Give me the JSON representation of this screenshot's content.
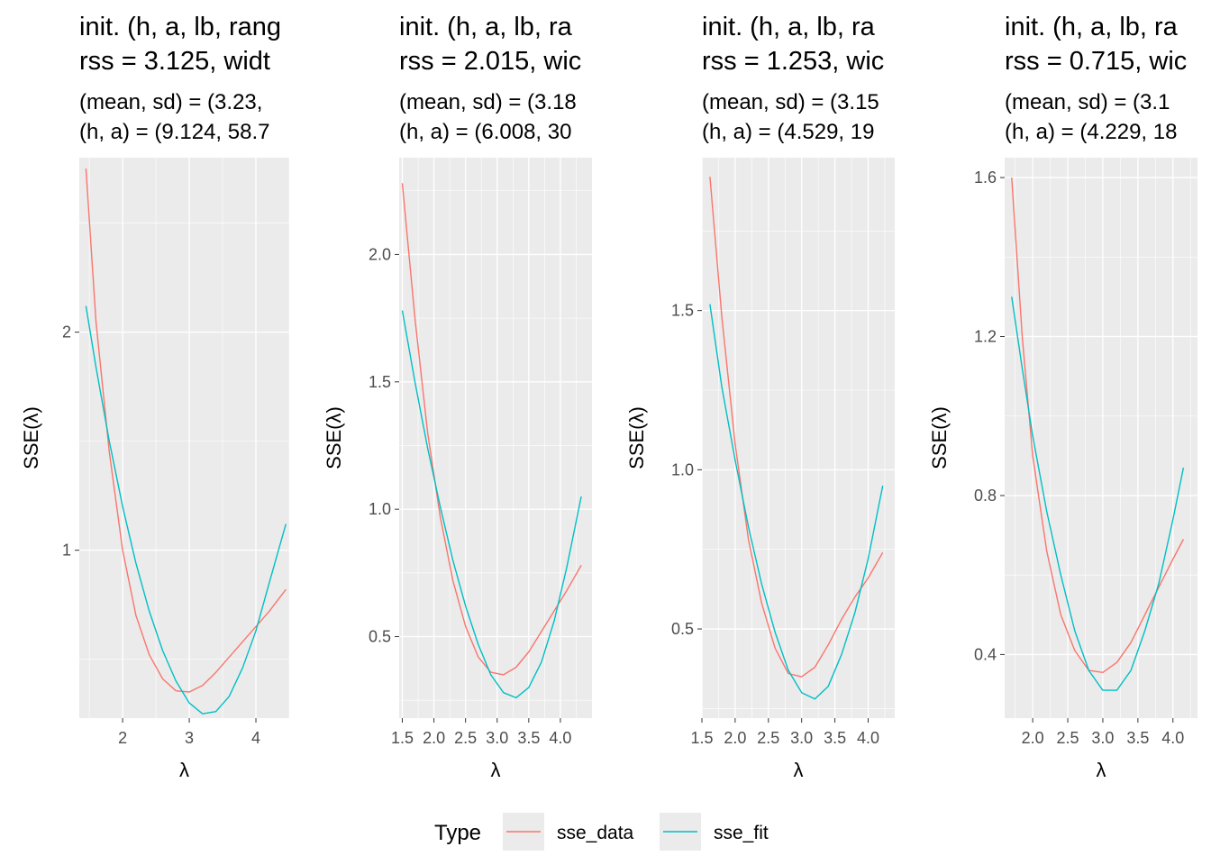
{
  "chart_data": [
    {
      "type": "line",
      "title_lines": [
        "init. (h, a, lb, rang",
        "rss = 3.125, widt"
      ],
      "subtitle_lines": [
        "(mean, sd) = (3.23, ",
        "(h, a) = (9.124, 58.7"
      ],
      "xlabel": "λ",
      "ylabel": "SSE(λ)",
      "xlim": [
        1.35,
        4.5
      ],
      "ylim": [
        0.23,
        2.8
      ],
      "xticks": [
        2,
        3,
        4
      ],
      "xtick_labels": [
        "2",
        "3",
        "4"
      ],
      "yticks": [
        1,
        2
      ],
      "ytick_labels": [
        "1",
        "2"
      ],
      "series": [
        {
          "name": "sse_data",
          "x": [
            1.45,
            1.6,
            1.8,
            2.0,
            2.2,
            2.4,
            2.6,
            2.8,
            3.0,
            3.2,
            3.4,
            3.6,
            3.8,
            4.0,
            4.2,
            4.45
          ],
          "y": [
            2.75,
            2.05,
            1.45,
            1.0,
            0.7,
            0.52,
            0.41,
            0.355,
            0.35,
            0.38,
            0.44,
            0.51,
            0.58,
            0.65,
            0.72,
            0.82
          ]
        },
        {
          "name": "sse_fit",
          "x": [
            1.45,
            1.6,
            1.8,
            2.0,
            2.2,
            2.4,
            2.6,
            2.8,
            3.0,
            3.2,
            3.4,
            3.6,
            3.8,
            4.0,
            4.2,
            4.45
          ],
          "y": [
            2.12,
            1.84,
            1.5,
            1.2,
            0.94,
            0.72,
            0.54,
            0.4,
            0.3,
            0.25,
            0.26,
            0.33,
            0.46,
            0.63,
            0.85,
            1.12
          ]
        }
      ]
    },
    {
      "type": "line",
      "title_lines": [
        "init. (h, a, lb, ra",
        "rss = 2.015, wic"
      ],
      "subtitle_lines": [
        "(mean, sd) = (3.18",
        "(h, a) = (6.008, 30"
      ],
      "xlabel": "λ",
      "ylabel": "SSE(λ)",
      "xlim": [
        1.45,
        4.5
      ],
      "ylim": [
        0.18,
        2.38
      ],
      "xticks": [
        1.5,
        2.0,
        2.5,
        3.0,
        3.5,
        4.0
      ],
      "xtick_labels": [
        "1.5",
        "2.0",
        "2.5",
        "3.0",
        "3.5",
        "4.0"
      ],
      "yticks": [
        0.5,
        1.0,
        1.5,
        2.0
      ],
      "ytick_labels": [
        "0.5",
        "1.0",
        "1.5",
        "2.0"
      ],
      "series": [
        {
          "name": "sse_data",
          "x": [
            1.5,
            1.7,
            1.9,
            2.1,
            2.3,
            2.5,
            2.7,
            2.9,
            3.1,
            3.3,
            3.5,
            3.7,
            3.9,
            4.1,
            4.33
          ],
          "y": [
            2.28,
            1.75,
            1.3,
            0.97,
            0.72,
            0.54,
            0.42,
            0.36,
            0.35,
            0.38,
            0.44,
            0.52,
            0.6,
            0.68,
            0.78
          ]
        },
        {
          "name": "sse_fit",
          "x": [
            1.5,
            1.7,
            1.9,
            2.1,
            2.3,
            2.5,
            2.7,
            2.9,
            3.1,
            3.3,
            3.5,
            3.7,
            3.9,
            4.1,
            4.33
          ],
          "y": [
            1.78,
            1.5,
            1.24,
            1.01,
            0.8,
            0.62,
            0.47,
            0.35,
            0.28,
            0.26,
            0.3,
            0.4,
            0.56,
            0.77,
            1.05
          ]
        }
      ]
    },
    {
      "type": "line",
      "title_lines": [
        "init. (h, a, lb, ra",
        "rss = 1.253, wic"
      ],
      "subtitle_lines": [
        "(mean, sd) = (3.15",
        "(h, a) = (4.529, 19"
      ],
      "xlabel": "λ",
      "ylabel": "SSE(λ)",
      "xlim": [
        1.5,
        4.4
      ],
      "ylim": [
        0.22,
        1.98
      ],
      "xticks": [
        1.5,
        2.0,
        2.5,
        3.0,
        3.5,
        4.0
      ],
      "xtick_labels": [
        "1.5",
        "2.0",
        "2.5",
        "3.0",
        "3.5",
        "4.0"
      ],
      "yticks": [
        0.5,
        1.0,
        1.5
      ],
      "ytick_labels": [
        "0.5",
        "1.0",
        "1.5"
      ],
      "series": [
        {
          "name": "sse_data",
          "x": [
            1.62,
            1.8,
            2.0,
            2.2,
            2.4,
            2.6,
            2.8,
            3.0,
            3.2,
            3.4,
            3.6,
            3.8,
            4.0,
            4.22
          ],
          "y": [
            1.92,
            1.48,
            1.08,
            0.78,
            0.58,
            0.44,
            0.36,
            0.35,
            0.38,
            0.45,
            0.53,
            0.6,
            0.66,
            0.74
          ]
        },
        {
          "name": "sse_fit",
          "x": [
            1.62,
            1.8,
            2.0,
            2.2,
            2.4,
            2.6,
            2.8,
            3.0,
            3.2,
            3.4,
            3.6,
            3.8,
            4.0,
            4.22
          ],
          "y": [
            1.52,
            1.26,
            1.03,
            0.82,
            0.64,
            0.49,
            0.37,
            0.3,
            0.28,
            0.32,
            0.42,
            0.55,
            0.72,
            0.95
          ]
        }
      ]
    },
    {
      "type": "line",
      "title_lines": [
        "init. (h, a, lb, ra",
        "rss = 0.715, wic"
      ],
      "subtitle_lines": [
        "(mean, sd) = (3.1",
        "(h, a) = (4.229, 18"
      ],
      "xlabel": "λ",
      "ylabel": "SSE(λ)",
      "xlim": [
        1.6,
        4.35
      ],
      "ylim": [
        0.24,
        1.65
      ],
      "xticks": [
        2.0,
        2.5,
        3.0,
        3.5,
        4.0
      ],
      "xtick_labels": [
        "2.0",
        "2.5",
        "3.0",
        "3.5",
        "4.0"
      ],
      "yticks": [
        0.4,
        0.8,
        1.2,
        1.6
      ],
      "ytick_labels": [
        "0.4",
        "0.8",
        "1.2",
        "1.6"
      ],
      "series": [
        {
          "name": "sse_data",
          "x": [
            1.7,
            1.85,
            2.0,
            2.2,
            2.4,
            2.6,
            2.8,
            3.0,
            3.2,
            3.4,
            3.6,
            3.8,
            4.0,
            4.15
          ],
          "y": [
            1.6,
            1.2,
            0.9,
            0.66,
            0.5,
            0.41,
            0.36,
            0.355,
            0.38,
            0.43,
            0.5,
            0.57,
            0.64,
            0.69
          ]
        },
        {
          "name": "sse_fit",
          "x": [
            1.7,
            1.85,
            2.0,
            2.2,
            2.4,
            2.6,
            2.8,
            3.0,
            3.2,
            3.4,
            3.6,
            3.8,
            4.0,
            4.15
          ],
          "y": [
            1.3,
            1.12,
            0.95,
            0.76,
            0.6,
            0.46,
            0.36,
            0.31,
            0.31,
            0.36,
            0.46,
            0.58,
            0.74,
            0.87
          ]
        }
      ]
    }
  ],
  "legend": {
    "title": "Type",
    "entries": [
      {
        "label": "sse_data",
        "color": "#F8766D"
      },
      {
        "label": "sse_fit",
        "color": "#00BFC4"
      }
    ]
  },
  "colors": {
    "panel_bg": "#EBEBEB",
    "grid_major": "#FFFFFF",
    "sse_data": "#F8766D",
    "sse_fit": "#00BFC4"
  }
}
